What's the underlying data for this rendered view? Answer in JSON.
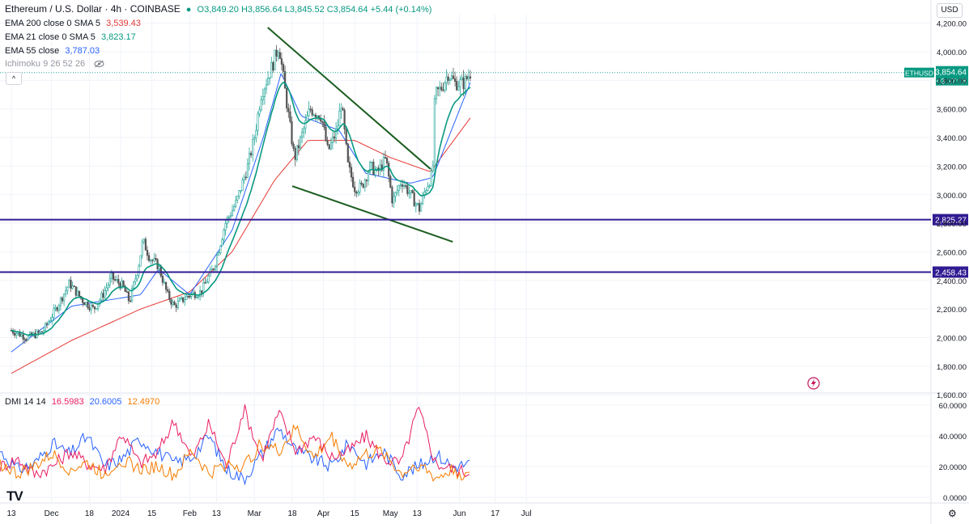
{
  "header": {
    "symbol": "Ethereum / U.S. Dollar · 4h · COINBASE",
    "ohlc": "O3,849.20 H3,856.64 L3,845.52 C3,854.64 +5.44 (+0.14%)",
    "ema200_label": "EMA 200 close 0 SMA 5",
    "ema200_value": "3,539.43",
    "ema21_label": "EMA 21 close 0 SMA 5",
    "ema21_value": "3,823.17",
    "ema55_label": "EMA 55 close",
    "ema55_value": "3,787.03",
    "ichimoku_label": "Ichimoku 9 26 52 26"
  },
  "dmi_header": {
    "label": "DMI 14 14",
    "v1": "16.5983",
    "v2": "20.6005",
    "v3": "12.4970"
  },
  "currency_button": "USD",
  "collapse_glyph": "^",
  "logo_text": "TV",
  "colors": {
    "candle": "#26a69a",
    "candle_down": "#555555",
    "ema21": "#089981",
    "ema55": "#2962ff",
    "ema200": "#e53935",
    "trendline": "#1b5e20",
    "support": "#311b92",
    "dmi_plus": "#2962ff",
    "dmi_minus": "#e91e63",
    "adx": "#f57c00"
  },
  "chart_data": {
    "type": "candlestick",
    "price_axis": {
      "ticks": [
        "4,200.00",
        "4,000.00",
        "3,800.00",
        "3,600.00",
        "3,400.00",
        "3,200.00",
        "3,000.00",
        "2,800.00",
        "2,600.00",
        "2,400.00",
        "2,200.00",
        "2,000.00",
        "1,800.00",
        "1,600.00"
      ],
      "range": [
        1550,
        4250
      ]
    },
    "time_axis": [
      "13",
      "Dec",
      "18",
      "2024",
      "15",
      "Feb",
      "13",
      "Mar",
      "18",
      "Apr",
      "15",
      "May",
      "13",
      "Jun",
      "17",
      "Jul"
    ],
    "last_price": {
      "symbol": "ETHUSD",
      "value": "3,854.64",
      "countdown": "03:37:08"
    },
    "horizontal_levels": [
      {
        "label": "2,825.27",
        "value": 2825.27
      },
      {
        "label": "2,458.43",
        "value": 2458.43
      }
    ],
    "trendlines": [
      {
        "from": {
          "date": "2024-03-07",
          "price": 4170
        },
        "to": {
          "date": "2024-05-19",
          "price": 3180
        }
      },
      {
        "from": {
          "date": "2024-03-18",
          "price": 3060
        },
        "to": {
          "date": "2024-05-29",
          "price": 2670
        }
      }
    ],
    "price_path": [
      {
        "date": "2023-11-13",
        "price": 2050
      },
      {
        "date": "2023-11-20",
        "price": 2000
      },
      {
        "date": "2023-11-27",
        "price": 2040
      },
      {
        "date": "2023-12-03",
        "price": 2200
      },
      {
        "date": "2023-12-09",
        "price": 2380
      },
      {
        "date": "2023-12-15",
        "price": 2260
      },
      {
        "date": "2023-12-20",
        "price": 2200
      },
      {
        "date": "2023-12-24",
        "price": 2300
      },
      {
        "date": "2023-12-28",
        "price": 2420
      },
      {
        "date": "2024-01-02",
        "price": 2360
      },
      {
        "date": "2024-01-05",
        "price": 2250
      },
      {
        "date": "2024-01-09",
        "price": 2500
      },
      {
        "date": "2024-01-11",
        "price": 2680
      },
      {
        "date": "2024-01-14",
        "price": 2560
      },
      {
        "date": "2024-01-18",
        "price": 2500
      },
      {
        "date": "2024-01-22",
        "price": 2300
      },
      {
        "date": "2024-01-25",
        "price": 2220
      },
      {
        "date": "2024-02-01",
        "price": 2300
      },
      {
        "date": "2024-02-06",
        "price": 2320
      },
      {
        "date": "2024-02-12",
        "price": 2500
      },
      {
        "date": "2024-02-17",
        "price": 2800
      },
      {
        "date": "2024-02-22",
        "price": 2950
      },
      {
        "date": "2024-02-27",
        "price": 3200
      },
      {
        "date": "2024-03-01",
        "price": 3400
      },
      {
        "date": "2024-03-04",
        "price": 3700
      },
      {
        "date": "2024-03-09",
        "price": 3900
      },
      {
        "date": "2024-03-12",
        "price": 4050
      },
      {
        "date": "2024-03-15",
        "price": 3700
      },
      {
        "date": "2024-03-19",
        "price": 3250
      },
      {
        "date": "2024-03-22",
        "price": 3400
      },
      {
        "date": "2024-03-26",
        "price": 3600
      },
      {
        "date": "2024-03-31",
        "price": 3550
      },
      {
        "date": "2024-04-03",
        "price": 3300
      },
      {
        "date": "2024-04-07",
        "price": 3450
      },
      {
        "date": "2024-04-09",
        "price": 3650
      },
      {
        "date": "2024-04-12",
        "price": 3200
      },
      {
        "date": "2024-04-15",
        "price": 3050
      },
      {
        "date": "2024-04-18",
        "price": 3050
      },
      {
        "date": "2024-04-22",
        "price": 3200
      },
      {
        "date": "2024-04-25",
        "price": 3150
      },
      {
        "date": "2024-04-29",
        "price": 3250
      },
      {
        "date": "2024-05-02",
        "price": 2950
      },
      {
        "date": "2024-05-06",
        "price": 3100
      },
      {
        "date": "2024-05-10",
        "price": 3000
      },
      {
        "date": "2024-05-14",
        "price": 2900
      },
      {
        "date": "2024-05-17",
        "price": 3050
      },
      {
        "date": "2024-05-20",
        "price": 3150
      },
      {
        "date": "2024-05-21",
        "price": 3700
      },
      {
        "date": "2024-05-24",
        "price": 3750
      },
      {
        "date": "2024-05-27",
        "price": 3850
      },
      {
        "date": "2024-05-30",
        "price": 3780
      },
      {
        "date": "2024-06-03",
        "price": 3780
      },
      {
        "date": "2024-06-06",
        "price": 3855
      }
    ],
    "ema200_path": [
      {
        "date": "2023-11-13",
        "price": 1750
      },
      {
        "date": "2023-12-10",
        "price": 1980
      },
      {
        "date": "2024-01-10",
        "price": 2200
      },
      {
        "date": "2024-02-01",
        "price": 2320
      },
      {
        "date": "2024-02-20",
        "price": 2600
      },
      {
        "date": "2024-03-10",
        "price": 3100
      },
      {
        "date": "2024-03-25",
        "price": 3380
      },
      {
        "date": "2024-04-15",
        "price": 3380
      },
      {
        "date": "2024-05-01",
        "price": 3260
      },
      {
        "date": "2024-05-19",
        "price": 3160
      },
      {
        "date": "2024-06-06",
        "price": 3540
      }
    ],
    "ema55_path": [
      {
        "date": "2023-11-13",
        "price": 1900
      },
      {
        "date": "2023-12-10",
        "price": 2220
      },
      {
        "date": "2024-01-10",
        "price": 2300
      },
      {
        "date": "2024-01-18",
        "price": 2480
      },
      {
        "date": "2024-02-01",
        "price": 2300
      },
      {
        "date": "2024-02-20",
        "price": 2750
      },
      {
        "date": "2024-03-05",
        "price": 3400
      },
      {
        "date": "2024-03-13",
        "price": 3850
      },
      {
        "date": "2024-03-22",
        "price": 3550
      },
      {
        "date": "2024-04-08",
        "price": 3450
      },
      {
        "date": "2024-04-20",
        "price": 3150
      },
      {
        "date": "2024-05-10",
        "price": 3080
      },
      {
        "date": "2024-05-20",
        "price": 3120
      },
      {
        "date": "2024-06-06",
        "price": 3790
      }
    ],
    "dmi": {
      "range": [
        0,
        65
      ],
      "ticks": [
        "60.0000",
        "40.0000",
        "20.0000",
        "0.0000"
      ],
      "series": [
        {
          "name": "+DI",
          "values": [
            30,
            18,
            22,
            35,
            28,
            40,
            20,
            25,
            38,
            30,
            22,
            26,
            40,
            18,
            12,
            28,
            45,
            30,
            25,
            20,
            35,
            22,
            30,
            15,
            20,
            28,
            20,
            22
          ]
        },
        {
          "name": "-DI",
          "values": [
            20,
            25,
            15,
            20,
            30,
            22,
            18,
            42,
            22,
            28,
            50,
            25,
            48,
            20,
            58,
            25,
            55,
            30,
            40,
            26,
            30,
            40,
            25,
            22,
            58,
            22,
            18,
            16
          ]
        },
        {
          "name": "ADX",
          "values": [
            22,
            15,
            20,
            28,
            18,
            22,
            15,
            25,
            18,
            20,
            14,
            30,
            15,
            22,
            20,
            35,
            30,
            45,
            25,
            40,
            20,
            28,
            30,
            15,
            22,
            12,
            18,
            12
          ]
        }
      ]
    }
  }
}
